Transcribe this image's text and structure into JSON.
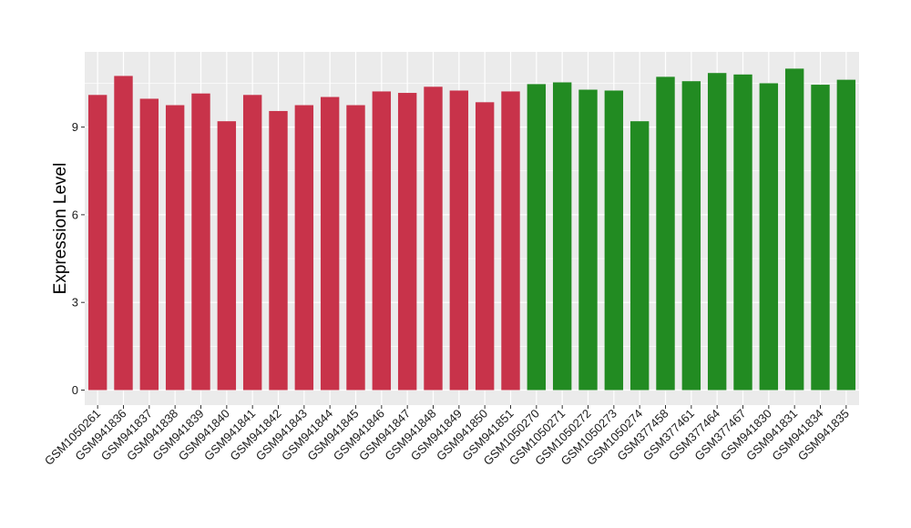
{
  "chart_data": {
    "type": "bar",
    "title": "",
    "xlabel": "",
    "ylabel": "Expression Level",
    "ylim": [
      0,
      11.6
    ],
    "yticks": [
      0,
      3,
      6,
      9
    ],
    "grid": true,
    "panel_background": "#ebebeb",
    "grid_color": "#ffffff",
    "categories": [
      "GSM1050261",
      "GSM941836",
      "GSM941837",
      "GSM941838",
      "GSM941839",
      "GSM941840",
      "GSM941841",
      "GSM941842",
      "GSM941843",
      "GSM941844",
      "GSM941845",
      "GSM941846",
      "GSM941847",
      "GSM941848",
      "GSM941849",
      "GSM941850",
      "GSM941851",
      "GSM1050270",
      "GSM1050271",
      "GSM1050272",
      "GSM1050273",
      "GSM1050274",
      "GSM377458",
      "GSM377461",
      "GSM377464",
      "GSM377467",
      "GSM941830",
      "GSM941831",
      "GSM941834",
      "GSM941835"
    ],
    "values": [
      10.1,
      10.75,
      9.97,
      9.75,
      10.15,
      9.2,
      10.1,
      9.55,
      9.75,
      10.03,
      9.75,
      10.22,
      10.17,
      10.38,
      10.25,
      9.85,
      10.22,
      10.47,
      10.53,
      10.28,
      10.25,
      9.2,
      10.72,
      10.57,
      10.85,
      10.8,
      10.5,
      11.0,
      10.45,
      10.62
    ],
    "bar_colors": [
      "#c8334a",
      "#c8334a",
      "#c8334a",
      "#c8334a",
      "#c8334a",
      "#c8334a",
      "#c8334a",
      "#c8334a",
      "#c8334a",
      "#c8334a",
      "#c8334a",
      "#c8334a",
      "#c8334a",
      "#c8334a",
      "#c8334a",
      "#c8334a",
      "#c8334a",
      "#228b22",
      "#228b22",
      "#228b22",
      "#228b22",
      "#228b22",
      "#228b22",
      "#228b22",
      "#228b22",
      "#228b22",
      "#228b22",
      "#228b22",
      "#228b22",
      "#228b22"
    ]
  }
}
